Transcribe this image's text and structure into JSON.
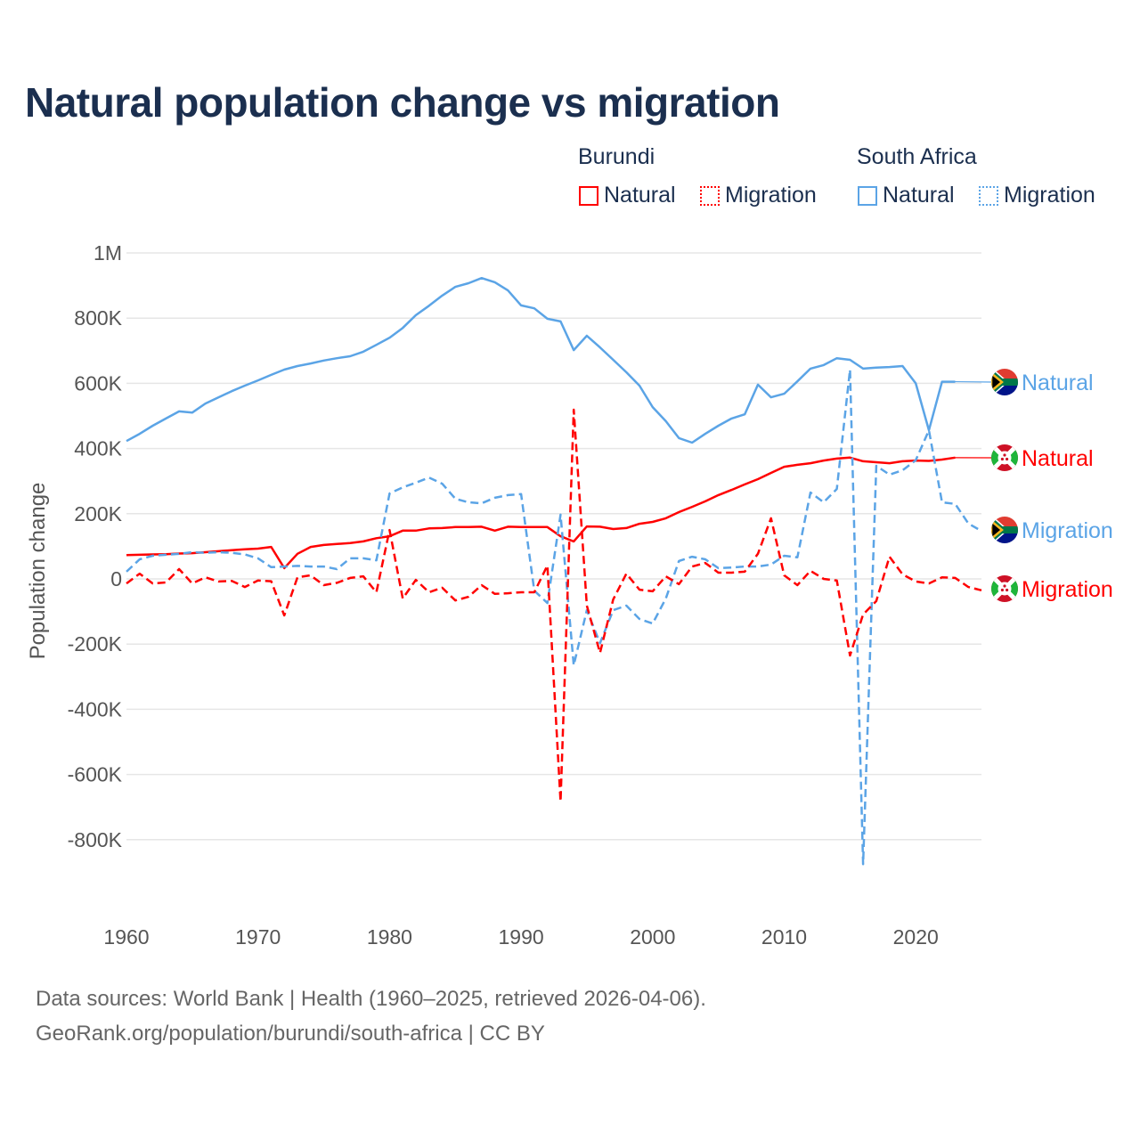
{
  "title": "Natural population change vs migration",
  "legend": {
    "groups": [
      {
        "name": "Burundi",
        "items": [
          "Natural",
          "Migration"
        ],
        "color": "#ff0000"
      },
      {
        "name": "South Africa",
        "items": [
          "Natural",
          "Migration"
        ],
        "color": "#5ba4e6"
      }
    ]
  },
  "footer": {
    "line1": "Data sources: World Bank | Health (1960–2025, retrieved 2026-04-06).",
    "line2": "GeoRank.org/population/burundi/south-africa | CC BY"
  },
  "chart_data": {
    "type": "line",
    "title": "Natural population change vs migration",
    "xlabel": "",
    "ylabel": "Population change",
    "xlim": [
      1960,
      2025
    ],
    "ylim": [
      -1000000,
      1000000
    ],
    "x_ticks": [
      1960,
      1970,
      1980,
      1990,
      2000,
      2010,
      2020
    ],
    "y_ticks": [
      {
        "value": 1000000,
        "label": "1M"
      },
      {
        "value": 800000,
        "label": "800K"
      },
      {
        "value": 600000,
        "label": "600K"
      },
      {
        "value": 400000,
        "label": "400K"
      },
      {
        "value": 200000,
        "label": "200K"
      },
      {
        "value": 0,
        "label": "0"
      },
      {
        "value": -200000,
        "label": "-200K"
      },
      {
        "value": -400000,
        "label": "-400K"
      },
      {
        "value": -600000,
        "label": "-600K"
      },
      {
        "value": -800000,
        "label": "-800K"
      }
    ],
    "grid": true,
    "legend_position": "top-right",
    "x_start": 1960,
    "series": [
      {
        "name": "South Africa Natural",
        "end_label": "Natural",
        "flag": "south-africa",
        "color": "#5ba4e6",
        "dash": false,
        "values": [
          423,
          445,
          470,
          492,
          514,
          510,
          538,
          557,
          576,
          593,
          609,
          626,
          642,
          653,
          661,
          670,
          677,
          683,
          697,
          718,
          740,
          770,
          809,
          838,
          869,
          896,
          907,
          923,
          910,
          885,
          839,
          830,
          798,
          790,
          702,
          746,
          710,
          672,
          634,
          593,
          527,
          484,
          432,
          418,
          445,
          470,
          492,
          505,
          596,
          557,
          568,
          606,
          645,
          656,
          677,
          672,
          645,
          648,
          650,
          653,
          600,
          456,
          605,
          605
        ]
      },
      {
        "name": "Burundi Natural",
        "end_label": "Natural",
        "flag": "burundi",
        "color": "#ff0000",
        "dash": false,
        "values": [
          73,
          74,
          75,
          76,
          78,
          79,
          82,
          85,
          88,
          91,
          93,
          98,
          33,
          77,
          98,
          104,
          107,
          110,
          115,
          125,
          131,
          148,
          148,
          155,
          156,
          159,
          159,
          160,
          148,
          160,
          159,
          159,
          159,
          131,
          115,
          161,
          160,
          153,
          156,
          169,
          175,
          186,
          205,
          221,
          238,
          257,
          273,
          290,
          306,
          325,
          344,
          350,
          355,
          363,
          369,
          372,
          361,
          358,
          355,
          361,
          363,
          362,
          366,
          372
        ]
      },
      {
        "name": "South Africa Migration",
        "end_label": "Migration",
        "flag": "south-africa",
        "color": "#5ba4e6",
        "dash": true,
        "values": [
          22,
          60,
          71,
          74,
          77,
          82,
          80,
          82,
          80,
          75,
          63,
          36,
          38,
          40,
          38,
          38,
          30,
          63,
          63,
          57,
          262,
          281,
          295,
          311,
          292,
          246,
          235,
          232,
          249,
          257,
          260,
          -36,
          -74,
          197,
          -265,
          -96,
          -197,
          -96,
          -82,
          -123,
          -137,
          -60,
          55,
          68,
          60,
          33,
          35,
          38,
          38,
          44,
          71,
          66,
          265,
          235,
          276,
          642,
          -875,
          347,
          320,
          333,
          364,
          456,
          235,
          230,
          170,
          147
        ]
      },
      {
        "name": "Burundi Migration",
        "end_label": "Migration",
        "flag": "burundi",
        "color": "#ff0000",
        "dash": true,
        "values": [
          -14,
          16,
          -14,
          -11,
          30,
          -14,
          5,
          -8,
          -6,
          -25,
          -5,
          -7,
          -112,
          5,
          11,
          -19,
          -12,
          3,
          8,
          -41,
          150,
          -60,
          -3,
          -41,
          -27,
          -66,
          -55,
          -19,
          -46,
          -44,
          -41,
          -41,
          41,
          -683,
          519,
          -82,
          -227,
          -63,
          16,
          -33,
          -38,
          8,
          -16,
          38,
          49,
          19,
          19,
          22,
          77,
          186,
          11,
          -19,
          25,
          0,
          -5,
          -235,
          -109,
          -68,
          68,
          14,
          -8,
          -14,
          5,
          3,
          -25,
          -35
        ]
      }
    ],
    "value_unit": "thousands"
  }
}
